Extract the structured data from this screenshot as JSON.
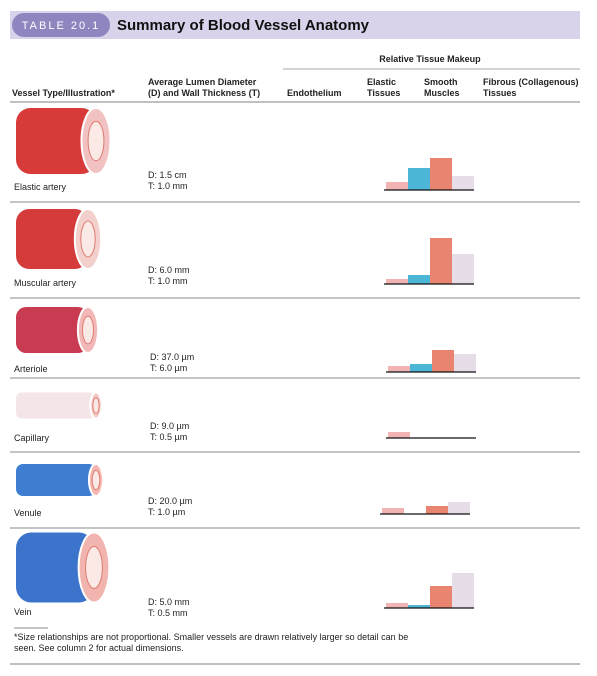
{
  "header": {
    "badge": "TABLE 20.1",
    "title": "Summary of Blood Vessel Anatomy"
  },
  "columns": {
    "vessel": [
      "Vessel Type/Illustration*"
    ],
    "size": [
      "Average Lumen Diameter",
      "(D) and Wall Thickness (T)"
    ],
    "group": "Relative Tissue Makeup",
    "tissues": [
      {
        "lines": [
          "Endothelium"
        ],
        "color": "#f2b3b3"
      },
      {
        "lines": [
          "Elastic",
          "Tissues"
        ],
        "color": "#4cb6d6"
      },
      {
        "lines": [
          "Smooth",
          "Muscles"
        ],
        "color": "#e8846f"
      },
      {
        "lines": [
          "Fibrous (Collagenous)",
          "Tissues"
        ],
        "color": "#e6dde9"
      }
    ]
  },
  "rows": [
    {
      "vessel": "Elastic artery",
      "diameter": "D: 1.5 cm",
      "thickness": "T: 1.0 mm",
      "tissue": [
        8,
        22,
        32,
        14
      ]
    },
    {
      "vessel": "Muscular artery",
      "diameter": "D: 6.0 mm",
      "thickness": "T: 1.0 mm",
      "tissue": [
        5,
        9,
        46,
        30
      ]
    },
    {
      "vessel": "Arteriole",
      "diameter": "D: 37.0 µm",
      "thickness": "T: 6.0 µm",
      "tissue": [
        6,
        8,
        22,
        18
      ]
    },
    {
      "vessel": "Capillary",
      "diameter": "D: 9.0 µm",
      "thickness": "T: 0.5 µm",
      "tissue": [
        6,
        0,
        0,
        0
      ]
    },
    {
      "vessel": "Venule",
      "diameter": "D: 20.0 µm",
      "thickness": "T: 1.0 µm",
      "tissue": [
        6,
        0,
        8,
        12
      ]
    },
    {
      "vessel": "Vein",
      "diameter": "D: 5.0 mm",
      "thickness": "T: 0.5 mm",
      "tissue": [
        5,
        3,
        22,
        35
      ]
    }
  ],
  "footnote": [
    "*Size relationships are not proportional. Smaller vessels are drawn relatively larger so detail can be",
    "seen. See column 2 for actual dimensions."
  ]
}
